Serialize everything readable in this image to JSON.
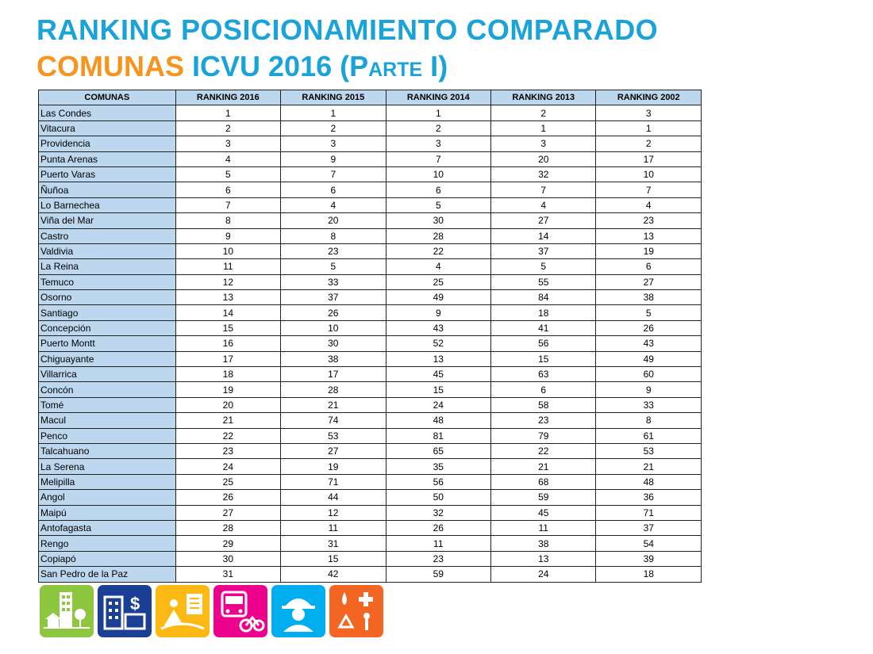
{
  "title": {
    "line1": "RANKING POSICIONAMIENTO COMPARADO",
    "line2_part1": "COMUNAS",
    "line2_part2": "ICVU 2016 (",
    "line2_part3": "Parte I",
    "line2_part4": ")"
  },
  "table": {
    "headers": [
      "COMUNAS",
      "RANKING 2016",
      "RANKING 2015",
      "RANKING 2014",
      "RANKING  2013",
      "RANKING  2002"
    ],
    "rows": [
      [
        "Las Condes",
        "1",
        "1",
        "1",
        "2",
        "3"
      ],
      [
        "Vitacura",
        "2",
        "2",
        "2",
        "1",
        "1"
      ],
      [
        "Providencia",
        "3",
        "3",
        "3",
        "3",
        "2"
      ],
      [
        "Punta Arenas",
        "4",
        "9",
        "7",
        "20",
        "17"
      ],
      [
        "Puerto Varas",
        "5",
        "7",
        "10",
        "32",
        "10"
      ],
      [
        "Ñuñoa",
        "6",
        "6",
        "6",
        "7",
        "7"
      ],
      [
        "Lo Barnechea",
        "7",
        "4",
        "5",
        "4",
        "4"
      ],
      [
        "Viña del Mar",
        "8",
        "20",
        "30",
        "27",
        "23"
      ],
      [
        "Castro",
        "9",
        "8",
        "28",
        "14",
        "13"
      ],
      [
        "Valdivia",
        "10",
        "23",
        "22",
        "37",
        "19"
      ],
      [
        "La Reina",
        "11",
        "5",
        "4",
        "5",
        "6"
      ],
      [
        "Temuco",
        "12",
        "33",
        "25",
        "55",
        "27"
      ],
      [
        "Osorno",
        "13",
        "37",
        "49",
        "84",
        "38"
      ],
      [
        "Santiago",
        "14",
        "26",
        "9",
        "18",
        "5"
      ],
      [
        "Concepción",
        "15",
        "10",
        "43",
        "41",
        "26"
      ],
      [
        "Puerto Montt",
        "16",
        "30",
        "52",
        "56",
        "43"
      ],
      [
        "Chiguayante",
        "17",
        "38",
        "13",
        "15",
        "49"
      ],
      [
        "Villarrica",
        "18",
        "17",
        "45",
        "63",
        "60"
      ],
      [
        "Concón",
        "19",
        "28",
        "15",
        "6",
        "9"
      ],
      [
        "Tomé",
        "20",
        "21",
        "24",
        "58",
        "33"
      ],
      [
        "Macul",
        "21",
        "74",
        "48",
        "23",
        "8"
      ],
      [
        "Penco",
        "22",
        "53",
        "81",
        "79",
        "61"
      ],
      [
        "Talcahuano",
        "23",
        "27",
        "65",
        "22",
        "53"
      ],
      [
        "La Serena",
        "24",
        "19",
        "35",
        "21",
        "21"
      ],
      [
        "Melipilla",
        "25",
        "71",
        "56",
        "68",
        "48"
      ],
      [
        "Angol",
        "26",
        "44",
        "50",
        "59",
        "36"
      ],
      [
        "Maipú",
        "27",
        "12",
        "32",
        "45",
        "71"
      ],
      [
        "Antofagasta",
        "28",
        "11",
        "26",
        "11",
        "37"
      ],
      [
        "Rengo",
        "29",
        "31",
        "11",
        "38",
        "54"
      ],
      [
        "Copiapó",
        "30",
        "15",
        "23",
        "13",
        "39"
      ],
      [
        "San Pedro de la Paz",
        "31",
        "42",
        "59",
        "24",
        "18"
      ]
    ]
  },
  "icons": [
    {
      "name": "housing-environment-icon",
      "color": "#8dc63f"
    },
    {
      "name": "business-climate-icon",
      "color": "#1b3f94"
    },
    {
      "name": "sociocultural-icon",
      "color": "#fdb913"
    },
    {
      "name": "mobility-icon",
      "color": "#ec008c"
    },
    {
      "name": "labor-conditions-icon",
      "color": "#00aeef"
    },
    {
      "name": "health-environment-icon",
      "color": "#f26522"
    }
  ]
}
